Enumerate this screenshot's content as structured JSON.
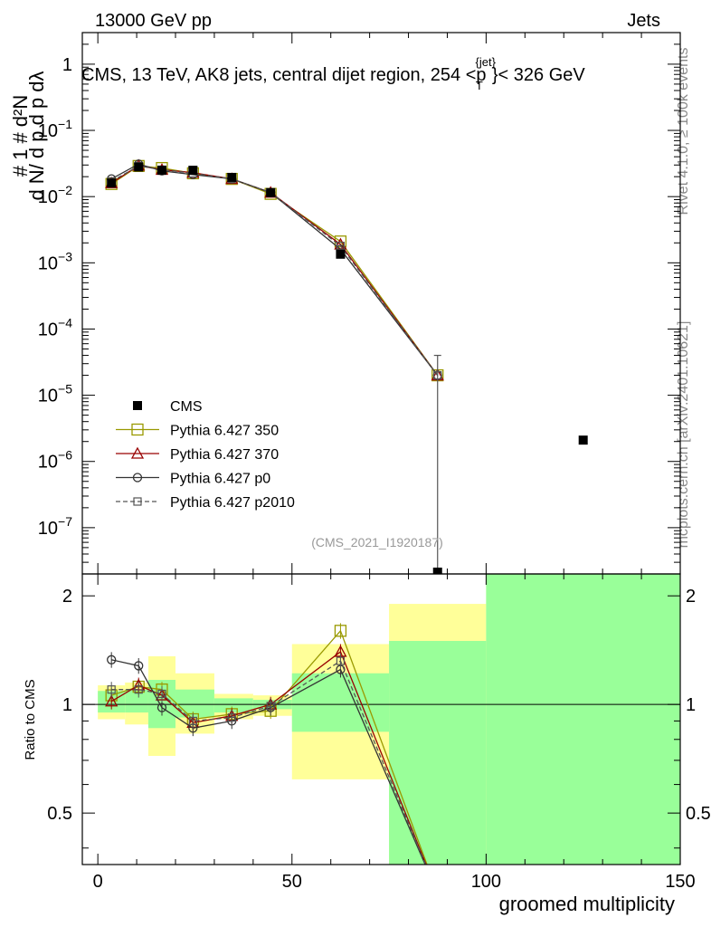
{
  "header": {
    "left": "13000 GeV pp",
    "right": "Jets"
  },
  "chart_data": {
    "type": "line",
    "title": "CMS, 13 TeV, AK8 jets, central dijet region, 254 <p",
    "title_sup": "{jet}",
    "title_sub": "T",
    "title_end": "}< 326 GeV",
    "watermark": "(CMS_2021_I1920187)",
    "side_text_top": "Rivet 4.1.0, ≥ 100k events",
    "side_text_bottom": "mcplots.cern.ch [arXiv:2401.10621]",
    "xlabel": "groomed multiplicity",
    "ylabel_main": "1/N dN/dp_T dp_T dλ",
    "ylabel_ratio": "Ratio to CMS",
    "xlim": [
      -4,
      150
    ],
    "ylim_main": [
      2e-08,
      3
    ],
    "ylim_ratio": [
      0.36,
      2.3
    ],
    "x_ticks": [
      0,
      50,
      100,
      150
    ],
    "main_y_ticks": [
      {
        "v": 1e-07,
        "base": "10",
        "exp": "−7"
      },
      {
        "v": 1e-06,
        "base": "10",
        "exp": "−6"
      },
      {
        "v": 1e-05,
        "base": "10",
        "exp": "−5"
      },
      {
        "v": 0.0001,
        "base": "10",
        "exp": "−4"
      },
      {
        "v": 0.001,
        "base": "10",
        "exp": "−3"
      },
      {
        "v": 0.01,
        "base": "10",
        "exp": "−2"
      },
      {
        "v": 0.1,
        "base": "10",
        "exp": "−1"
      },
      {
        "v": 1,
        "base": "1",
        "exp": ""
      }
    ],
    "ratio_y_ticks": [
      {
        "v": 0.5,
        "label": "0.5"
      },
      {
        "v": 1,
        "label": "1"
      },
      {
        "v": 2,
        "label": "2"
      }
    ],
    "data": {
      "name": "CMS",
      "x": [
        3.5,
        10.5,
        16.5,
        24.5,
        34.5,
        44.5,
        62.5,
        87.5,
        125
      ],
      "y": [
        0.016,
        0.028,
        0.025,
        0.025,
        0.0195,
        0.0115,
        0.00135,
        0,
        2.1e-06
      ]
    },
    "bands": [
      {
        "x0": 0,
        "x1": 7,
        "g": [
          0.95,
          1.09
        ],
        "y": [
          0.91,
          1.13
        ]
      },
      {
        "x0": 7,
        "x1": 13,
        "g": [
          0.95,
          1.1
        ],
        "y": [
          0.88,
          1.15
        ]
      },
      {
        "x0": 13,
        "x1": 20,
        "g": [
          0.86,
          1.17
        ],
        "y": [
          0.72,
          1.36
        ]
      },
      {
        "x0": 20,
        "x1": 30,
        "g": [
          0.92,
          1.1
        ],
        "y": [
          0.83,
          1.22
        ]
      },
      {
        "x0": 30,
        "x1": 40,
        "g": [
          0.95,
          1.04
        ],
        "y": [
          0.91,
          1.07
        ]
      },
      {
        "x0": 40,
        "x1": 50,
        "g": [
          0.97,
          1.03
        ],
        "y": [
          0.93,
          1.06
        ]
      },
      {
        "x0": 50,
        "x1": 75,
        "g": [
          0.84,
          1.22
        ],
        "y": [
          0.62,
          1.47
        ]
      },
      {
        "x0": 75,
        "x1": 100,
        "g": [
          0.36,
          1.5
        ],
        "y": [
          0.36,
          1.9
        ]
      },
      {
        "x0": 100,
        "x1": 150,
        "g": [
          0.36,
          2.3
        ],
        "y": [
          0.36,
          2.3
        ]
      }
    ],
    "series": [
      {
        "name": "Pythia 6.427 350",
        "color": "#999900",
        "marker": "square",
        "dash": "",
        "x": [
          3.5,
          10.5,
          16.5,
          24.5,
          34.5,
          44.5,
          62.5,
          87.5
        ],
        "y": [
          0.0155,
          0.029,
          0.027,
          0.0225,
          0.0185,
          0.011,
          0.0021,
          2e-05
        ],
        "ratio": [
          1.06,
          1.12,
          1.1,
          0.91,
          0.94,
          0.96,
          1.6,
          0.3
        ]
      },
      {
        "name": "Pythia 6.427 370",
        "color": "#990000",
        "marker": "triangle",
        "dash": "",
        "x": [
          3.5,
          10.5,
          16.5,
          24.5,
          34.5,
          44.5,
          62.5,
          87.5
        ],
        "y": [
          0.016,
          0.0295,
          0.0255,
          0.023,
          0.0185,
          0.0115,
          0.0019,
          2e-05
        ],
        "ratio": [
          1.02,
          1.13,
          1.06,
          0.89,
          0.93,
          1.0,
          1.4,
          0.3
        ]
      },
      {
        "name": "Pythia 6.427 p0",
        "color": "#333333",
        "marker": "circle",
        "dash": "",
        "x": [
          3.5,
          10.5,
          16.5,
          24.5,
          34.5,
          44.5,
          62.5,
          87.5
        ],
        "y": [
          0.0185,
          0.031,
          0.0245,
          0.0215,
          0.0185,
          0.0115,
          0.0016,
          2e-05
        ],
        "ratio": [
          1.33,
          1.28,
          0.98,
          0.86,
          0.9,
          0.98,
          1.25,
          0.3
        ]
      },
      {
        "name": "Pythia 6.427 p2010",
        "color": "#555555",
        "marker": "smallsquare",
        "dash": "5,3",
        "x": [
          3.5,
          10.5,
          16.5,
          24.5,
          34.5,
          44.5,
          62.5,
          87.5
        ],
        "y": [
          0.017,
          0.029,
          0.0255,
          0.0225,
          0.0185,
          0.0115,
          0.0018,
          2e-05
        ],
        "ratio": [
          1.1,
          1.1,
          1.07,
          0.9,
          0.92,
          0.99,
          1.32,
          0.3
        ]
      }
    ]
  }
}
